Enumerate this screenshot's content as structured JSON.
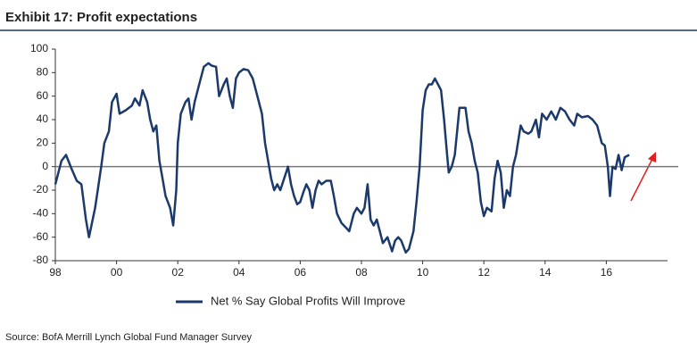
{
  "chart_data": {
    "type": "line",
    "title": "Exhibit 17: Profit expectations",
    "source": "Source: BofA Merrill Lynch Global Fund Manager Survey",
    "x": [
      1998.0,
      1998.2,
      1998.35,
      1998.5,
      1998.7,
      1998.85,
      1999.0,
      1999.1,
      1999.3,
      1999.5,
      1999.6,
      1999.75,
      1999.85,
      2000.0,
      2000.1,
      2000.3,
      2000.5,
      2000.6,
      2000.75,
      2000.85,
      2001.0,
      2001.1,
      2001.2,
      2001.3,
      2001.4,
      2001.5,
      2001.6,
      2001.75,
      2001.85,
      2001.95,
      2002.0,
      2002.1,
      2002.25,
      2002.35,
      2002.45,
      2002.55,
      2002.7,
      2002.85,
      2003.0,
      2003.1,
      2003.25,
      2003.35,
      2003.5,
      2003.6,
      2003.7,
      2003.8,
      2003.9,
      2004.0,
      2004.15,
      2004.3,
      2004.45,
      2004.6,
      2004.75,
      2004.85,
      2004.95,
      2005.05,
      2005.15,
      2005.25,
      2005.35,
      2005.5,
      2005.6,
      2005.7,
      2005.8,
      2005.9,
      2006.0,
      2006.1,
      2006.2,
      2006.3,
      2006.4,
      2006.5,
      2006.6,
      2006.7,
      2006.85,
      2007.0,
      2007.1,
      2007.2,
      2007.35,
      2007.5,
      2007.6,
      2007.75,
      2007.85,
      2008.0,
      2008.1,
      2008.2,
      2008.3,
      2008.4,
      2008.5,
      2008.6,
      2008.7,
      2008.85,
      2009.0,
      2009.1,
      2009.2,
      2009.3,
      2009.45,
      2009.55,
      2009.7,
      2009.8,
      2009.9,
      2010.0,
      2010.1,
      2010.2,
      2010.3,
      2010.4,
      2010.5,
      2010.6,
      2010.7,
      2010.8,
      2010.85,
      2010.95,
      2011.05,
      2011.2,
      2011.4,
      2011.5,
      2011.6,
      2011.7,
      2011.8,
      2011.9,
      2012.0,
      2012.1,
      2012.25,
      2012.35,
      2012.45,
      2012.55,
      2012.65,
      2012.75,
      2012.85,
      2012.95,
      2013.05,
      2013.2,
      2013.3,
      2013.45,
      2013.55,
      2013.7,
      2013.8,
      2013.9,
      2014.05,
      2014.2,
      2014.35,
      2014.5,
      2014.65,
      2014.8,
      2014.95,
      2015.05,
      2015.2,
      2015.4,
      2015.55,
      2015.7,
      2015.85,
      2015.95,
      2016.05,
      2016.12,
      2016.2,
      2016.3,
      2016.4,
      2016.5,
      2016.6,
      2016.75
    ],
    "series": [
      {
        "name": "Net % Say Global Profits Will Improve",
        "color": "#1b3a6b",
        "values": [
          -15,
          5,
          10,
          0,
          -12,
          -15,
          -45,
          -60,
          -35,
          0,
          20,
          30,
          55,
          62,
          45,
          48,
          52,
          58,
          52,
          65,
          55,
          40,
          30,
          35,
          5,
          -10,
          -25,
          -35,
          -50,
          -20,
          20,
          45,
          55,
          58,
          40,
          55,
          70,
          85,
          88,
          86,
          85,
          60,
          70,
          75,
          60,
          50,
          75,
          80,
          83,
          82,
          75,
          60,
          45,
          20,
          5,
          -10,
          -20,
          -15,
          -20,
          -8,
          0,
          -15,
          -25,
          -32,
          -30,
          -22,
          -15,
          -20,
          -35,
          -20,
          -12,
          -15,
          -12,
          -12,
          -25,
          -40,
          -48,
          -52,
          -55,
          -40,
          -35,
          -40,
          -35,
          -15,
          -45,
          -50,
          -45,
          -55,
          -65,
          -60,
          -72,
          -63,
          -60,
          -63,
          -73,
          -70,
          -55,
          -30,
          0,
          48,
          65,
          70,
          70,
          75,
          70,
          65,
          40,
          10,
          -5,
          0,
          10,
          50,
          50,
          30,
          20,
          5,
          -5,
          -30,
          -42,
          -35,
          -38,
          -10,
          5,
          -5,
          -35,
          -20,
          -25,
          0,
          10,
          35,
          30,
          28,
          30,
          40,
          25,
          45,
          40,
          47,
          40,
          50,
          47,
          40,
          35,
          45,
          42,
          43,
          40,
          35,
          20,
          18,
          0,
          -25,
          0,
          -2,
          10,
          -3,
          8,
          10
        ]
      }
    ],
    "xlim": [
      1998,
      2018
    ],
    "xticks": [
      {
        "value": 1998,
        "label": "98"
      },
      {
        "value": 2000,
        "label": "00"
      },
      {
        "value": 2002,
        "label": "02"
      },
      {
        "value": 2004,
        "label": "04"
      },
      {
        "value": 2006,
        "label": "06"
      },
      {
        "value": 2008,
        "label": "08"
      },
      {
        "value": 2010,
        "label": "10"
      },
      {
        "value": 2012,
        "label": "12"
      },
      {
        "value": 2014,
        "label": "14"
      },
      {
        "value": 2016,
        "label": "16"
      }
    ],
    "ylim": [
      -80,
      100
    ],
    "yticks": [
      -80,
      -60,
      -40,
      -20,
      0,
      20,
      40,
      60,
      80,
      100
    ],
    "zero_line": true
  }
}
